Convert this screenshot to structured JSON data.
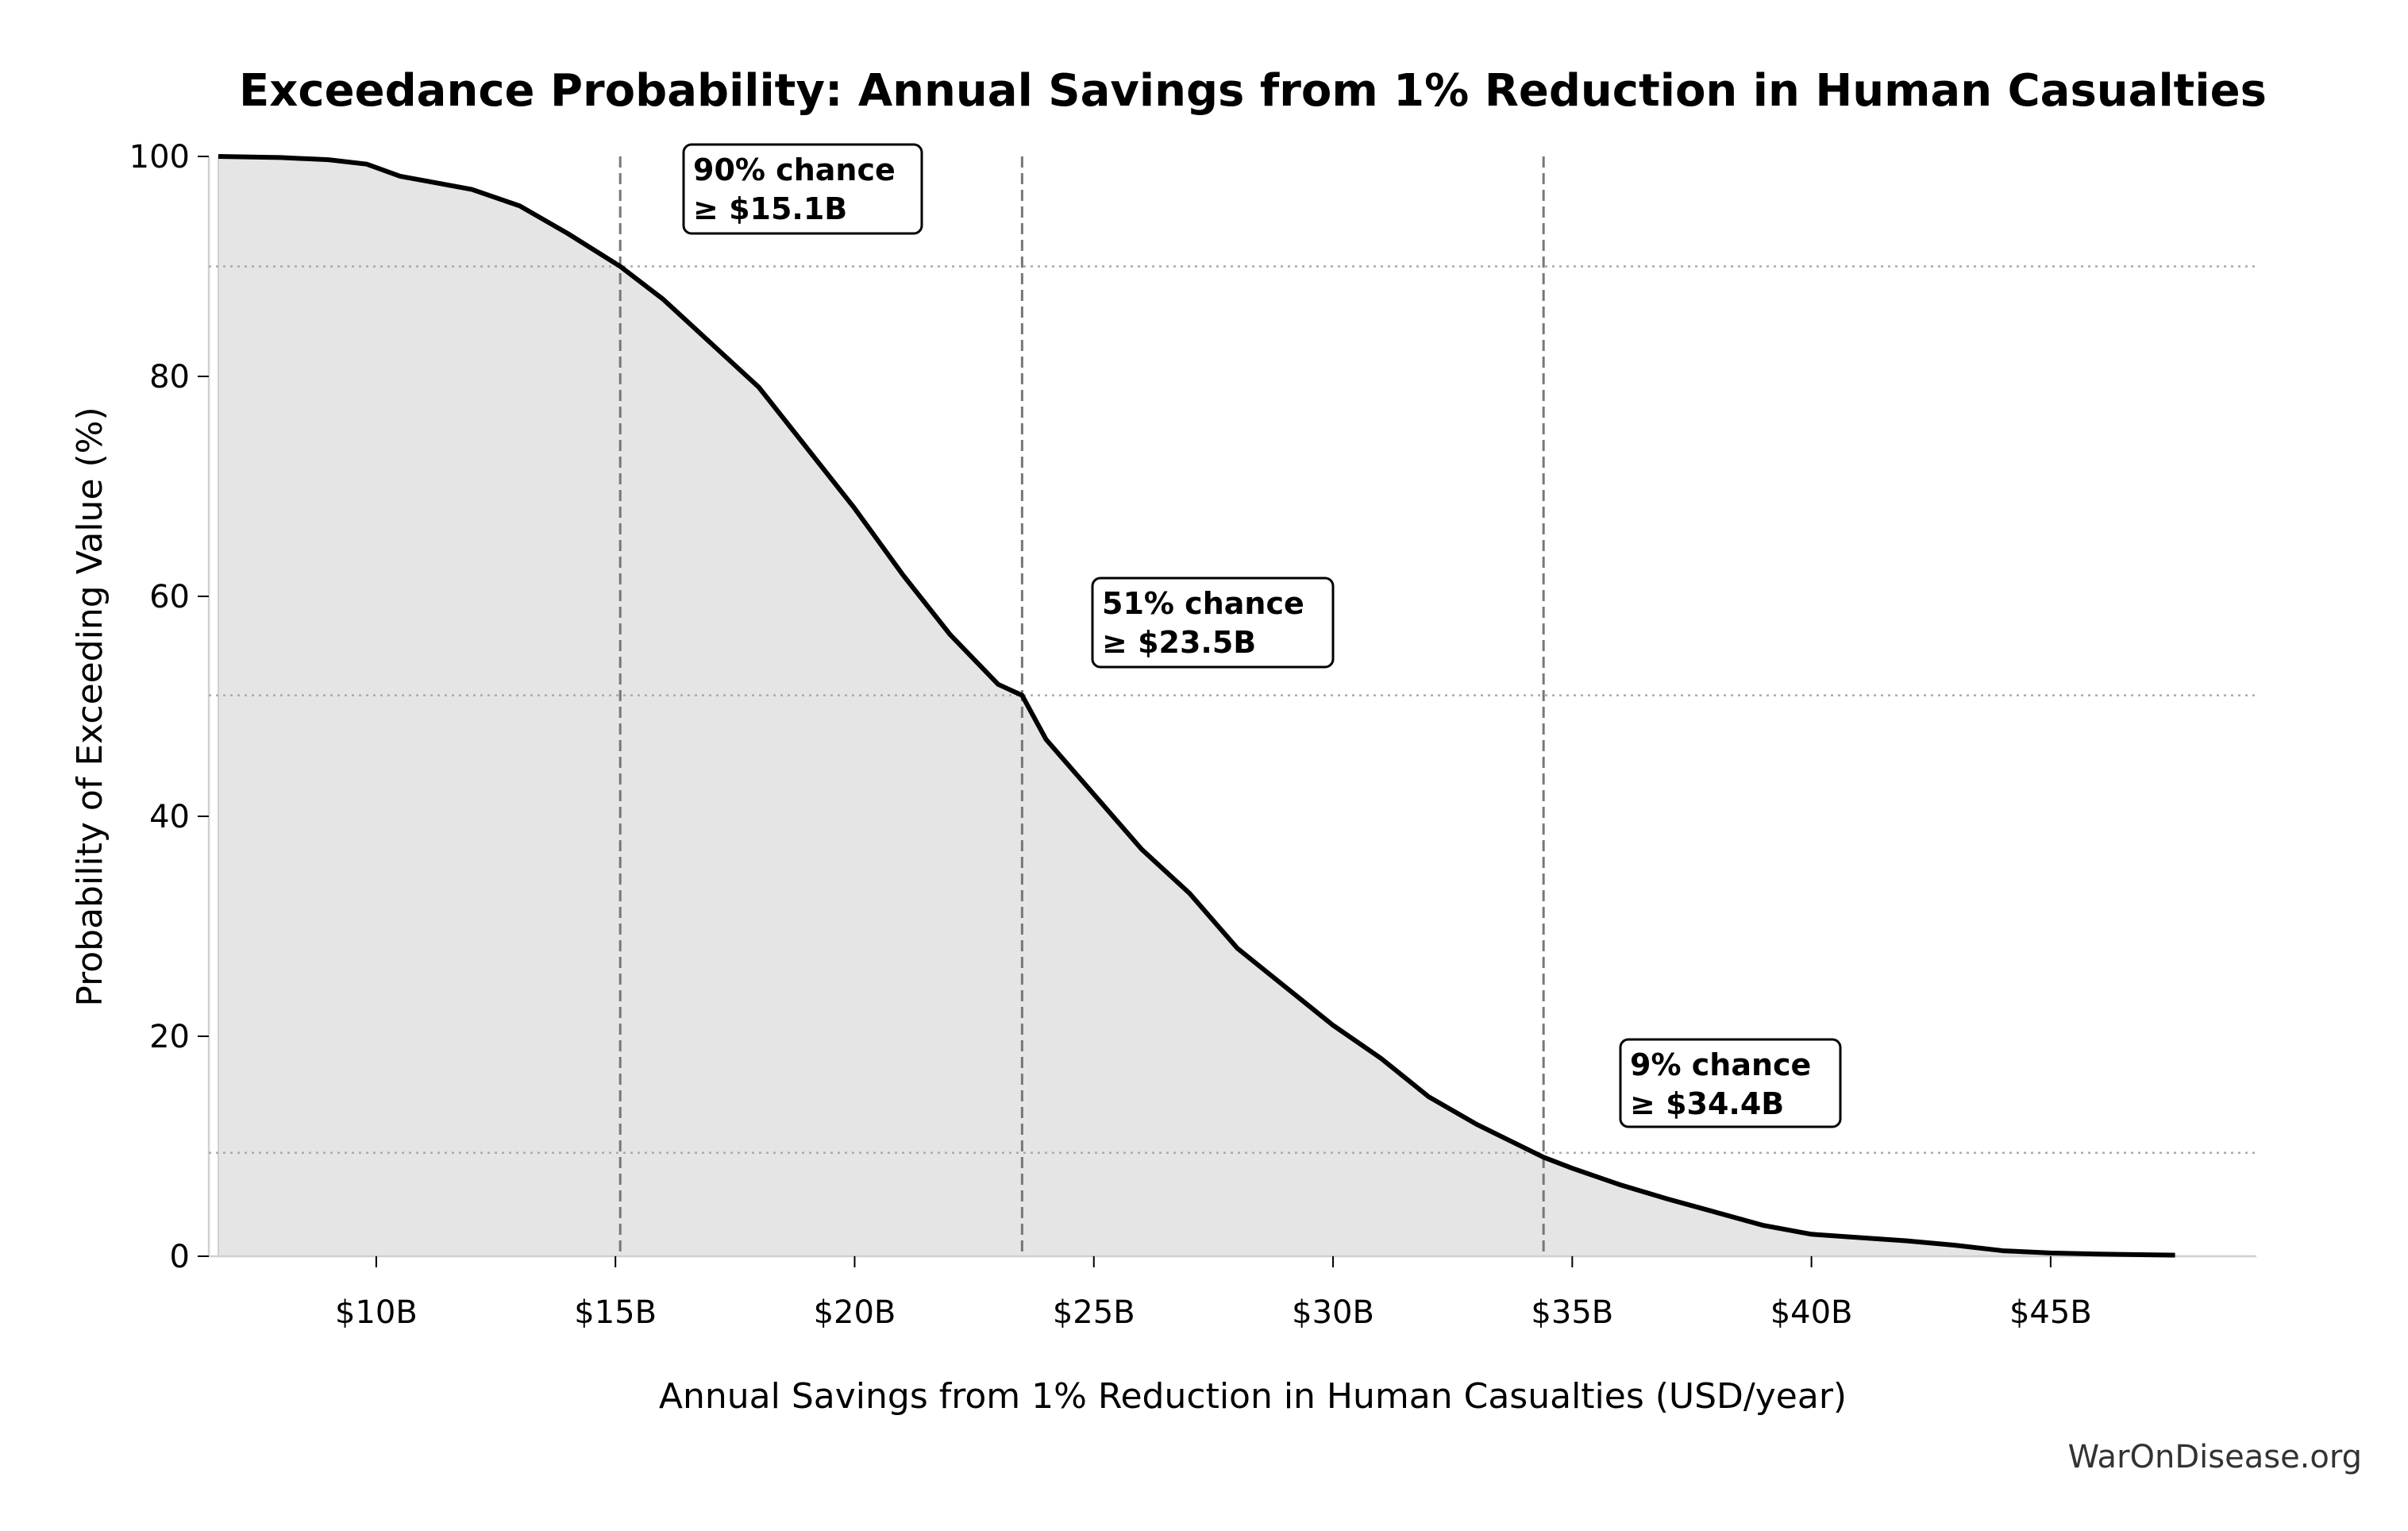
{
  "chart_data": {
    "type": "area",
    "title": "Exceedance Probability: Annual Savings from 1% Reduction in Human Casualties",
    "xlabel": "Annual Savings from 1% Reduction in Human Casualties (USD/year)",
    "ylabel": "Probability of Exceeding Value (%)",
    "xlim": [
      6.5,
      49.3
    ],
    "ylim": [
      0,
      100
    ],
    "xticks": [
      10,
      15,
      20,
      25,
      30,
      35,
      40,
      45
    ],
    "xtick_labels": [
      "$10B",
      "$15B",
      "$20B",
      "$25B",
      "$30B",
      "$35B",
      "$40B",
      "$45B"
    ],
    "yticks": [
      0,
      20,
      40,
      60,
      80,
      100
    ],
    "ytick_labels": [
      "0",
      "20",
      "40",
      "60",
      "80",
      "100"
    ],
    "series": [
      {
        "name": "Exceedance curve",
        "x": [
          6.7,
          8,
          9,
          9.8,
          10.5,
          11,
          12,
          13,
          14,
          15.1,
          16,
          17,
          18,
          19,
          20,
          21,
          22,
          23,
          23.5,
          24,
          25,
          26,
          27,
          28,
          29,
          30,
          31,
          32,
          33,
          34.4,
          35,
          36,
          37,
          38,
          39,
          40,
          41,
          42,
          43,
          44,
          45,
          46,
          47.6
        ],
        "y": [
          100,
          99.9,
          99.7,
          99.3,
          98.2,
          97.8,
          97,
          95.5,
          93,
          90,
          87,
          83,
          79,
          73.5,
          68,
          62,
          56.5,
          52,
          51,
          47,
          42,
          37,
          33,
          28,
          24.5,
          21,
          18,
          14.5,
          12,
          9,
          8,
          6.5,
          5.2,
          4,
          2.8,
          2,
          1.7,
          1.4,
          1,
          0.5,
          0.3,
          0.2,
          0.1
        ]
      }
    ],
    "annotations": [
      {
        "x": 15.1,
        "y": 90,
        "line1": "90% chance",
        "line2": "≥ $15.1B"
      },
      {
        "x": 23.5,
        "y": 51,
        "line1": "51% chance",
        "line2": "≥ $23.5B"
      },
      {
        "x": 34.4,
        "y": 9,
        "line1": "9% chance",
        "line2": "≥ $34.4B"
      }
    ],
    "colors": {
      "line": "#000000",
      "fill": "#e5e5e5",
      "ref": "#777777",
      "grid": "#aaaaaa"
    }
  },
  "footer": "WarOnDisease.org"
}
